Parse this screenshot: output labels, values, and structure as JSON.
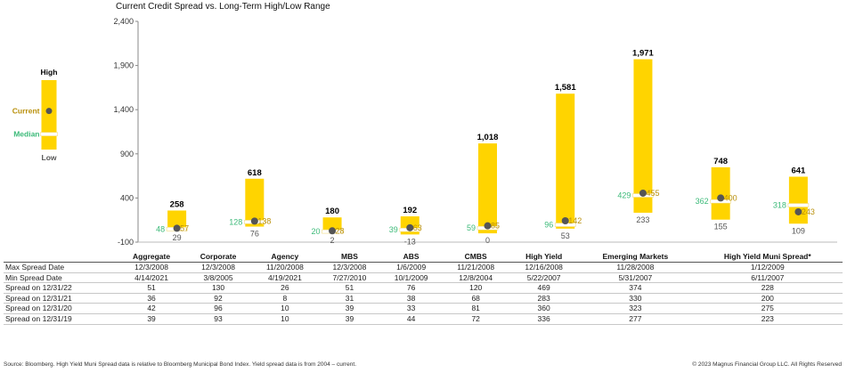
{
  "chart_data": {
    "type": "range",
    "title": "Current Credit Spread vs. Long-Term High/Low Range",
    "ylim": [
      -100,
      2400
    ],
    "yticks": [
      -100,
      400,
      900,
      1400,
      1900,
      2400
    ],
    "ytick_labels": [
      "-100",
      "400",
      "900",
      "1,400",
      "1,900",
      "2,400"
    ],
    "grid": false,
    "categories": [
      "Aggregate",
      "Corporate",
      "Agency",
      "MBS",
      "ABS",
      "CMBS",
      "High Yield",
      "Emerging Markets",
      "High Yield Muni Spread*"
    ],
    "high": [
      258,
      618,
      180,
      192,
      1018,
      1581,
      1971,
      748,
      641
    ],
    "low": [
      29,
      76,
      2,
      -13,
      0,
      53,
      233,
      155,
      109
    ],
    "median": [
      48,
      128,
      20,
      39,
      59,
      96,
      429,
      362,
      318
    ],
    "current": [
      57,
      138,
      28,
      63,
      85,
      142,
      455,
      400,
      243
    ],
    "high_labels": [
      "258",
      "618",
      "180",
      "192",
      "1,018",
      "1,581",
      "1,971",
      "748",
      "641"
    ],
    "low_labels": [
      "29",
      "76",
      "2",
      "-13",
      "0",
      "53",
      "233",
      "155",
      "109"
    ],
    "median_labels": [
      "48",
      "128",
      "20",
      "39",
      "59",
      "96",
      "429",
      "362",
      "318"
    ],
    "current_labels": [
      "57",
      "138",
      "28",
      "63",
      "85",
      "142",
      "455",
      "400",
      "243"
    ],
    "colors": {
      "bar": "#ffd400",
      "current": "#555555",
      "median": "#ffffff",
      "median_text": "#3cba79",
      "current_text": "#b9900c"
    },
    "legend": {
      "placement": "left",
      "high": "High",
      "low": "Low",
      "current": "Current",
      "median": "Median",
      "sample": {
        "high": 900,
        "low": 0,
        "median": 200,
        "current": 500
      }
    }
  },
  "table": {
    "headers": [
      "Aggregate",
      "Corporate",
      "Agency",
      "MBS",
      "ABS",
      "CMBS",
      "High Yield",
      "Emerging Markets",
      "High Yield Muni Spread*"
    ],
    "rows": [
      {
        "label": "Max Spread Date",
        "values": [
          "12/3/2008",
          "12/3/2008",
          "11/20/2008",
          "12/3/2008",
          "1/6/2009",
          "11/21/2008",
          "12/16/2008",
          "11/28/2008",
          "1/12/2009"
        ]
      },
      {
        "label": "Min Spread Date",
        "values": [
          "4/14/2021",
          "3/8/2005",
          "4/19/2021",
          "7/27/2010",
          "10/1/2009",
          "12/8/2004",
          "5/22/2007",
          "5/31/2007",
          "6/11/2007"
        ]
      },
      {
        "label": "Spread on 12/31/22",
        "values": [
          "51",
          "130",
          "26",
          "51",
          "76",
          "120",
          "469",
          "374",
          "228"
        ]
      },
      {
        "label": "Spread on 12/31/21",
        "values": [
          "36",
          "92",
          "8",
          "31",
          "38",
          "68",
          "283",
          "330",
          "200"
        ]
      },
      {
        "label": "Spread on 12/31/20",
        "values": [
          "42",
          "96",
          "10",
          "39",
          "33",
          "81",
          "360",
          "323",
          "275"
        ]
      },
      {
        "label": "Spread on 12/31/19",
        "values": [
          "39",
          "93",
          "10",
          "39",
          "44",
          "72",
          "336",
          "277",
          "223"
        ]
      }
    ]
  },
  "footer": {
    "source": "Source: Bloomberg. High Yield Muni Spread data is relative to Bloomberg Municipal Bond Index. Yield spread data is from 2004 – current.",
    "copyright": "© 2023 Magnus Financial Group LLC. All Rights Reserved"
  }
}
